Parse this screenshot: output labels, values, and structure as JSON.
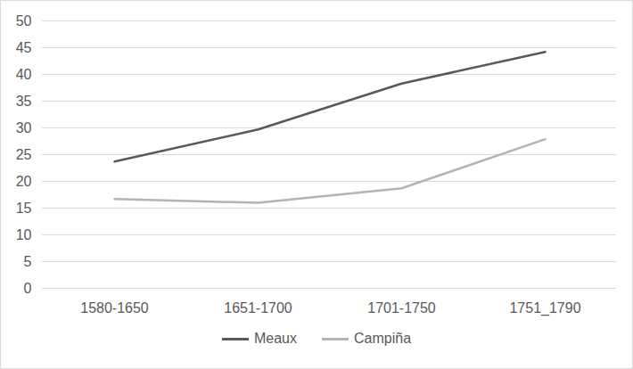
{
  "chart_data": {
    "type": "line",
    "categories": [
      "1580-1650",
      "1651-1700",
      "1701-1750",
      "1751_1790"
    ],
    "series": [
      {
        "name": "Meaux",
        "color": "#595959",
        "values": [
          23.7,
          29.7,
          38.3,
          44.2
        ]
      },
      {
        "name": "Campiña",
        "color": "#b4b4b4",
        "values": [
          16.7,
          16.0,
          18.7,
          27.9
        ]
      }
    ],
    "ylim": [
      0,
      50
    ],
    "yticks": [
      0,
      5,
      10,
      15,
      20,
      25,
      30,
      35,
      40,
      45,
      50
    ],
    "grid": true,
    "legend": "bottom"
  }
}
